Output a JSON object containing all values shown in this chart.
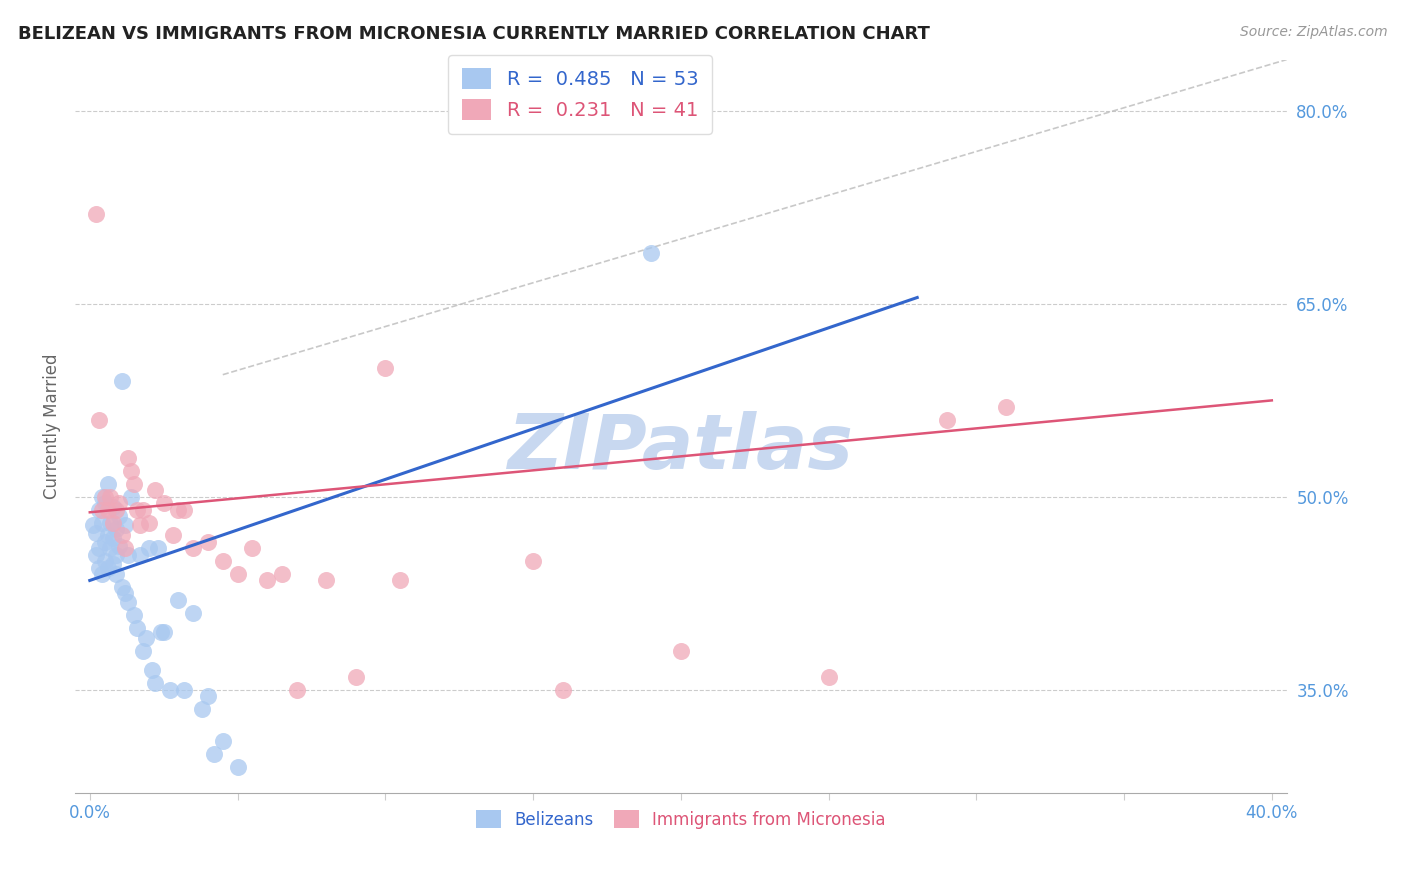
{
  "title": "BELIZEAN VS IMMIGRANTS FROM MICRONESIA CURRENTLY MARRIED CORRELATION CHART",
  "source": "Source: ZipAtlas.com",
  "xlim": [
    -0.005,
    0.405
  ],
  "ylim": [
    0.27,
    0.84
  ],
  "ylabel": "Currently Married",
  "blue_label": "Belizeans",
  "pink_label": "Immigrants from Micronesia",
  "blue_R": 0.485,
  "blue_N": 53,
  "pink_R": 0.231,
  "pink_N": 41,
  "blue_color": "#a8c8f0",
  "pink_color": "#f0a8b8",
  "blue_line_color": "#3366cc",
  "pink_line_color": "#dd5577",
  "watermark": "ZIPatlas",
  "watermark_color": "#c8d8f0",
  "ylabel_ticks": [
    0.35,
    0.5,
    0.65,
    0.8
  ],
  "xtick_positions": [
    0.0,
    0.05,
    0.1,
    0.15,
    0.2,
    0.25,
    0.3,
    0.35,
    0.4
  ],
  "xtick_labels_show": [
    "0.0%",
    "",
    "",
    "",
    "",
    "",
    "",
    "",
    "40.0%"
  ],
  "blue_dots_x": [
    0.001,
    0.002,
    0.002,
    0.003,
    0.003,
    0.003,
    0.004,
    0.004,
    0.004,
    0.005,
    0.005,
    0.005,
    0.006,
    0.006,
    0.006,
    0.007,
    0.007,
    0.008,
    0.008,
    0.008,
    0.009,
    0.009,
    0.009,
    0.01,
    0.01,
    0.011,
    0.011,
    0.012,
    0.012,
    0.013,
    0.013,
    0.014,
    0.015,
    0.016,
    0.017,
    0.018,
    0.019,
    0.02,
    0.021,
    0.022,
    0.023,
    0.024,
    0.025,
    0.027,
    0.03,
    0.032,
    0.035,
    0.038,
    0.04,
    0.042,
    0.045,
    0.05,
    0.19
  ],
  "blue_dots_y": [
    0.478,
    0.472,
    0.455,
    0.49,
    0.46,
    0.445,
    0.5,
    0.48,
    0.44,
    0.495,
    0.465,
    0.45,
    0.51,
    0.47,
    0.445,
    0.48,
    0.46,
    0.492,
    0.468,
    0.448,
    0.475,
    0.455,
    0.44,
    0.485,
    0.462,
    0.59,
    0.43,
    0.478,
    0.425,
    0.455,
    0.418,
    0.5,
    0.408,
    0.398,
    0.455,
    0.38,
    0.39,
    0.46,
    0.365,
    0.355,
    0.46,
    0.395,
    0.395,
    0.35,
    0.42,
    0.35,
    0.41,
    0.335,
    0.345,
    0.3,
    0.31,
    0.29,
    0.69
  ],
  "pink_dots_x": [
    0.002,
    0.003,
    0.004,
    0.005,
    0.006,
    0.007,
    0.008,
    0.009,
    0.01,
    0.011,
    0.012,
    0.013,
    0.014,
    0.015,
    0.016,
    0.017,
    0.018,
    0.02,
    0.022,
    0.025,
    0.028,
    0.03,
    0.032,
    0.035,
    0.04,
    0.045,
    0.05,
    0.055,
    0.06,
    0.065,
    0.07,
    0.08,
    0.09,
    0.1,
    0.105,
    0.15,
    0.16,
    0.2,
    0.25,
    0.29,
    0.31
  ],
  "pink_dots_y": [
    0.72,
    0.56,
    0.49,
    0.5,
    0.49,
    0.5,
    0.48,
    0.49,
    0.495,
    0.47,
    0.46,
    0.53,
    0.52,
    0.51,
    0.49,
    0.478,
    0.49,
    0.48,
    0.505,
    0.495,
    0.47,
    0.49,
    0.49,
    0.46,
    0.465,
    0.45,
    0.44,
    0.46,
    0.435,
    0.44,
    0.35,
    0.435,
    0.36,
    0.6,
    0.435,
    0.45,
    0.35,
    0.38,
    0.36,
    0.56,
    0.57
  ],
  "blue_line_x": [
    0.0,
    0.28
  ],
  "blue_line_y": [
    0.435,
    0.655
  ],
  "pink_line_x": [
    0.0,
    0.4
  ],
  "pink_line_y": [
    0.488,
    0.575
  ],
  "diag_line_x": [
    0.045,
    0.405
  ],
  "diag_line_y": [
    0.595,
    0.84
  ]
}
